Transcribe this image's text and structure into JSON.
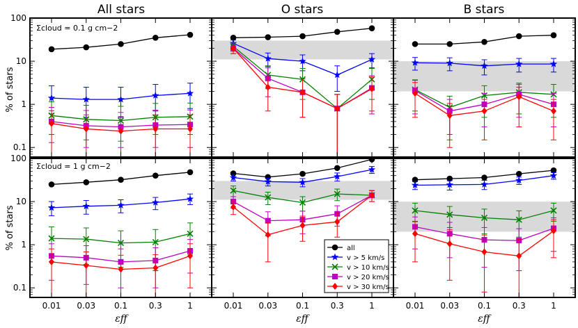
{
  "chart_data": {
    "type": "line",
    "ylabel": "% of stars",
    "xlabel": "εff",
    "x_values": [
      0.01,
      0.03,
      0.1,
      0.3,
      1
    ],
    "x_tick_labels": [
      "0.01",
      "0.03",
      "0.1",
      "0.3",
      "1"
    ],
    "ylim": [
      0.06,
      100
    ],
    "yscale": "log",
    "y_tick_labels": [
      "0.1",
      "1",
      "10",
      "100"
    ],
    "column_titles": [
      "All stars",
      "O stars",
      "B stars"
    ],
    "row_annotations": [
      "Σcloud = 0.1 g cm−2",
      "Σcloud = 1 g cm−2"
    ],
    "legend": {
      "placement": "lower-right of bottom-middle panel",
      "entries": [
        "all",
        "v > 5 km/s",
        "v > 10 km/s",
        "v > 20 km/s",
        "v > 30 km/s"
      ]
    },
    "series_styles": [
      {
        "name": "all",
        "color": "#000000",
        "marker": "circle"
      },
      {
        "name": "v > 5 km/s",
        "color": "#0000ff",
        "marker": "star"
      },
      {
        "name": "v > 10 km/s",
        "color": "#008000",
        "marker": "x"
      },
      {
        "name": "v > 20 km/s",
        "color": "#bf00bf",
        "marker": "square"
      },
      {
        "name": "v > 30 km/s",
        "color": "#ff0000",
        "marker": "diamond"
      }
    ],
    "panels": [
      {
        "row": 0,
        "col": 0,
        "series": [
          {
            "values": [
              19,
              21,
              25,
              35,
              41
            ],
            "err_lo": [
              0,
              0,
              0,
              0,
              0
            ],
            "err_hi": [
              0,
              0,
              0,
              0,
              0
            ]
          },
          {
            "values": [
              1.4,
              1.3,
              1.3,
              1.6,
              1.8
            ],
            "err_lo": [
              0.8,
              0.8,
              0.8,
              0.9,
              1.0
            ],
            "err_hi": [
              1.3,
              1.2,
              1.2,
              1.3,
              1.3
            ]
          },
          {
            "values": [
              0.55,
              0.45,
              0.42,
              0.5,
              0.52
            ],
            "err_lo": [
              0.35,
              0.3,
              0.28,
              0.3,
              0.32
            ],
            "err_hi": [
              0.6,
              0.5,
              0.48,
              0.55,
              0.55
            ]
          },
          {
            "values": [
              0.4,
              0.32,
              0.3,
              0.33,
              0.34
            ],
            "err_lo": [
              0.27,
              0.22,
              0.2,
              0.23,
              0.24
            ],
            "err_hi": [
              0.45,
              0.4,
              0.35,
              0.4,
              0.4
            ]
          },
          {
            "values": [
              0.36,
              0.27,
              0.24,
              0.27,
              0.27
            ],
            "err_lo": [
              0.34,
              0.25,
              0.22,
              0.25,
              0.25
            ],
            "err_hi": [
              0.35,
              0.3,
              0.28,
              0.3,
              0.3
            ]
          }
        ]
      },
      {
        "row": 0,
        "col": 1,
        "shade": [
          11,
          30
        ],
        "series": [
          {
            "values": [
              35,
              36,
              38,
              48,
              58
            ],
            "err_lo": [
              0,
              0,
              0,
              0,
              0
            ],
            "err_hi": [
              0,
              0,
              0,
              0,
              0
            ]
          },
          {
            "values": [
              26,
              11.5,
              10,
              4.8,
              11
            ],
            "err_lo": [
              5,
              4,
              4,
              2.8,
              4
            ],
            "err_hi": [
              5,
              4,
              4,
              3,
              4
            ]
          },
          {
            "values": [
              22,
              4.8,
              3.8,
              0.8,
              3.8
            ],
            "err_lo": [
              5,
              2.5,
              2.5,
              0.75,
              2.5
            ],
            "err_hi": [
              5,
              3,
              3,
              0.9,
              3
            ]
          },
          {
            "values": [
              20,
              4.0,
              1.9,
              0.8,
              2.4
            ],
            "err_lo": [
              5,
              2.5,
              1.4,
              0.75,
              1.8
            ],
            "err_hi": [
              5,
              3,
              2,
              0.9,
              2.2
            ]
          },
          {
            "values": [
              20,
              2.5,
              1.9,
              0.8,
              2.3
            ],
            "err_lo": [
              5,
              1.8,
              1.4,
              0.75,
              1.6
            ],
            "err_hi": [
              5,
              2,
              2,
              0.9,
              2
            ]
          }
        ]
      },
      {
        "row": 0,
        "col": 2,
        "shade": [
          2,
          10
        ],
        "series": [
          {
            "values": [
              25,
              25,
              28,
              38,
              40
            ],
            "err_lo": [
              0,
              0,
              0,
              0,
              0
            ],
            "err_hi": [
              0,
              0,
              0,
              0,
              0
            ]
          },
          {
            "values": [
              9.2,
              9.0,
              7.8,
              8.6,
              8.6
            ],
            "err_lo": [
              3,
              3,
              3,
              3,
              3
            ],
            "err_hi": [
              3,
              3,
              3,
              3,
              3
            ]
          },
          {
            "values": [
              2.2,
              0.85,
              1.6,
              1.9,
              1.7
            ],
            "err_lo": [
              1.5,
              0.7,
              1.1,
              1.3,
              1.2
            ],
            "err_hi": [
              1.5,
              0.7,
              1.1,
              1.2,
              1.2
            ]
          },
          {
            "values": [
              2.1,
              0.7,
              1.0,
              1.7,
              1.0
            ],
            "err_lo": [
              1.5,
              0.5,
              0.7,
              1.2,
              0.7
            ],
            "err_hi": [
              1.5,
              0.6,
              0.8,
              1.2,
              0.8
            ]
          },
          {
            "values": [
              1.8,
              0.55,
              0.7,
              1.5,
              0.7
            ],
            "err_lo": [
              1.3,
              0.45,
              0.55,
              1.2,
              0.55
            ],
            "err_hi": [
              1.4,
              0.5,
              0.6,
              1.0,
              0.6
            ]
          }
        ]
      },
      {
        "row": 1,
        "col": 0,
        "series": [
          {
            "values": [
              25,
              28,
              32,
              40,
              48
            ],
            "err_lo": [
              0,
              0,
              0,
              0,
              0
            ],
            "err_hi": [
              0,
              0,
              0,
              0,
              0
            ]
          },
          {
            "values": [
              7.2,
              7.8,
              8.2,
              9.5,
              11.5
            ],
            "err_lo": [
              2.5,
              2.7,
              2.7,
              3,
              3
            ],
            "err_hi": [
              2.8,
              2.8,
              2.8,
              3,
              3.5
            ]
          },
          {
            "values": [
              1.4,
              1.35,
              1.1,
              1.15,
              1.8
            ],
            "err_lo": [
              1.0,
              1.0,
              0.8,
              0.9,
              1.2
            ],
            "err_hi": [
              1.2,
              1.1,
              1.0,
              1.1,
              1.4
            ]
          },
          {
            "values": [
              0.55,
              0.5,
              0.4,
              0.43,
              0.72
            ],
            "err_lo": [
              0.4,
              0.38,
              0.3,
              0.33,
              0.5
            ],
            "err_hi": [
              0.5,
              0.45,
              0.4,
              0.42,
              0.6
            ]
          },
          {
            "values": [
              0.4,
              0.33,
              0.27,
              0.29,
              0.55
            ],
            "err_lo": [
              0.35,
              0.3,
              0.25,
              0.26,
              0.45
            ],
            "err_hi": [
              0.4,
              0.35,
              0.3,
              0.3,
              0.5
            ]
          }
        ]
      },
      {
        "row": 1,
        "col": 1,
        "shade": [
          11,
          30
        ],
        "series": [
          {
            "values": [
              45,
              37,
              44,
              60,
              95
            ],
            "err_lo": [
              0,
              0,
              0,
              0,
              0
            ],
            "err_hi": [
              0,
              0,
              0,
              0,
              0
            ]
          },
          {
            "values": [
              36,
              29,
              28,
              38,
              55
            ],
            "err_lo": [
              6,
              6,
              6,
              8,
              10
            ],
            "err_hi": [
              6,
              6,
              6,
              8,
              10
            ]
          },
          {
            "values": [
              18,
              12.5,
              9.5,
              15,
              14
            ],
            "err_lo": [
              5,
              4,
              3.5,
              4.5,
              4
            ],
            "err_hi": [
              5,
              4,
              3.5,
              4.5,
              4
            ]
          },
          {
            "values": [
              10,
              3.6,
              3.8,
              5.2,
              14
            ],
            "err_lo": [
              3,
              2,
              2,
              2.5,
              4
            ],
            "err_hi": [
              3,
              2.2,
              2.2,
              2.8,
              4
            ]
          },
          {
            "values": [
              7.5,
              1.7,
              2.8,
              3.4,
              14
            ],
            "err_lo": [
              2.5,
              1.3,
              1.6,
              1.9,
              4
            ],
            "err_hi": [
              2.8,
              1.5,
              1.8,
              2.2,
              4
            ]
          }
        ]
      },
      {
        "row": 1,
        "col": 2,
        "shade": [
          2,
          10
        ],
        "series": [
          {
            "values": [
              32,
              34,
              36,
              44,
              53
            ],
            "err_lo": [
              0,
              0,
              0,
              0,
              0
            ],
            "err_hi": [
              0,
              0,
              0,
              0,
              0
            ]
          },
          {
            "values": [
              24,
              24.5,
              25,
              31,
              40
            ],
            "err_lo": [
              5,
              6,
              6,
              6,
              7
            ],
            "err_hi": [
              5,
              6,
              6,
              6,
              7
            ]
          },
          {
            "values": [
              6.2,
              5.0,
              4.2,
              3.8,
              6.2
            ],
            "err_lo": [
              2.7,
              2.5,
              2.4,
              2.3,
              2.7
            ],
            "err_hi": [
              3,
              2.7,
              2.5,
              2.3,
              3
            ]
          },
          {
            "values": [
              2.6,
              1.8,
              1.3,
              1.25,
              2.4
            ],
            "err_lo": [
              1.8,
              1.3,
              1.0,
              1.0,
              1.7
            ],
            "err_hi": [
              1.8,
              1.5,
              1.2,
              1.1,
              1.8
            ]
          },
          {
            "values": [
              1.8,
              1.05,
              0.68,
              0.55,
              2.1
            ],
            "err_lo": [
              1.4,
              0.9,
              0.6,
              0.5,
              1.6
            ],
            "err_hi": [
              1.6,
              1.2,
              1.0,
              0.8,
              1.7
            ]
          }
        ]
      }
    ]
  }
}
